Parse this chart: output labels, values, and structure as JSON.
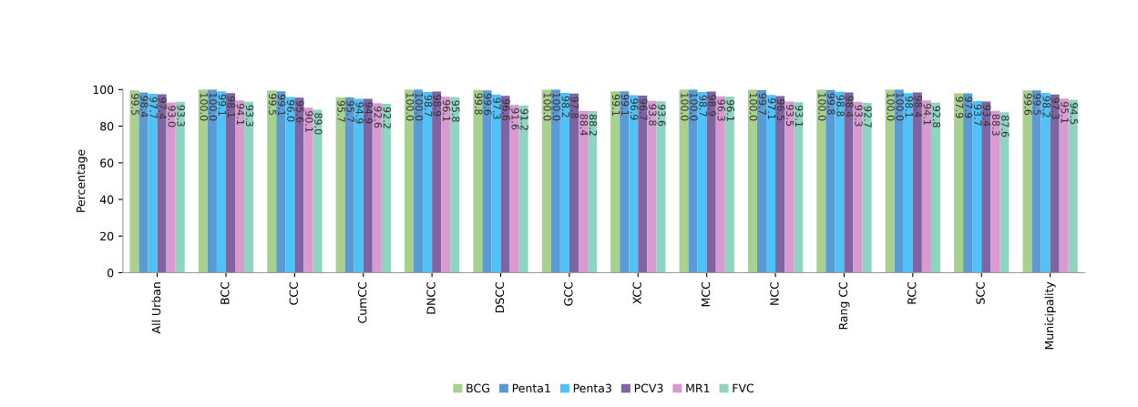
{
  "chart_data": {
    "type": "bar",
    "ylabel": "Percentage",
    "ylim": [
      0,
      100
    ],
    "yticks": [
      0,
      20,
      40,
      60,
      80,
      100
    ],
    "grid": false,
    "legend": "bottom",
    "categories": [
      "All Urban",
      "BCC",
      "CCC",
      "CumCC",
      "DNCC",
      "DSCC",
      "GCC",
      "XCC",
      "MCC",
      "NCC",
      "Rang CC",
      "RCC",
      "SCC",
      "Municipality"
    ],
    "series": [
      {
        "name": "BCG",
        "color": "#a9d18e",
        "values": [
          99.5,
          100,
          99.5,
          95.7,
          100,
          99.8,
          100,
          99.1,
          100,
          100,
          100,
          100,
          97.9,
          99.6
        ],
        "value_labels": [
          "99.5",
          "100.0",
          "99.5",
          "95.7",
          "100.0",
          "99.8",
          "100.0",
          "99.1",
          "100.0",
          "100.0",
          "100.0",
          "100.0",
          "97.9",
          "99.6"
        ]
      },
      {
        "name": "Penta1",
        "color": "#5b9bd5",
        "values": [
          98.4,
          100,
          99.1,
          95.7,
          100,
          99.6,
          100,
          99.1,
          100,
          99.7,
          99.8,
          100,
          97.9,
          99.5
        ],
        "value_labels": [
          "98.4",
          "100.0",
          "99.1",
          "95.7",
          "100.0",
          "99.6",
          "100.0",
          "99.1",
          "100.0",
          "99.7",
          "99.8",
          "100.0",
          "97.9",
          "99.5"
        ]
      },
      {
        "name": "Penta3",
        "color": "#4fc3f7",
        "values": [
          97.7,
          99.1,
          96,
          94.9,
          98.7,
          97.3,
          98.2,
          96.9,
          98.7,
          97.1,
          98.8,
          98.1,
          93.7,
          98.2
        ],
        "value_labels": [
          "97.7",
          "99.1",
          "96.0",
          "94.9",
          "98.7",
          "97.3",
          "98.2",
          "96.9",
          "98.7",
          "97.1",
          "98.8",
          "98.1",
          "93.7",
          "98.2"
        ]
      },
      {
        "name": "PCV3",
        "color": "#8064a2",
        "values": [
          97.4,
          98.1,
          95.6,
          94.9,
          98.9,
          96.6,
          97.8,
          96.7,
          98.9,
          96.5,
          98.4,
          98.4,
          93.4,
          97.3
        ],
        "value_labels": [
          "97.4",
          "98.1",
          "95.6",
          "94.9",
          "98.9",
          "96.6",
          "97.8",
          "96.7",
          "98.9",
          "96.5",
          "98.4",
          "98.4",
          "93.4",
          "97.3"
        ]
      },
      {
        "name": "MR1",
        "color": "#d99ad0",
        "values": [
          93,
          94.1,
          90.1,
          92.6,
          96.1,
          91.6,
          88.4,
          93.8,
          96.3,
          93.5,
          93.3,
          94.1,
          88.3,
          95.1
        ],
        "value_labels": [
          "93.0",
          "94.1",
          "90.1",
          "92.6",
          "96.1",
          "91.6",
          "88.4",
          "93.8",
          "96.3",
          "93.5",
          "93.3",
          "94.1",
          "88.3",
          "95.1"
        ]
      },
      {
        "name": "FVC",
        "color": "#8fd3c1",
        "values": [
          93.3,
          93.3,
          89,
          92.2,
          95.8,
          91.2,
          88.2,
          93.6,
          96.1,
          93.1,
          92.7,
          92.8,
          87.6,
          94.5
        ],
        "value_labels": [
          "93.3",
          "93.3",
          "89.0",
          "92.2",
          "95.8",
          "91.2",
          "88.2",
          "93.6",
          "96.1",
          "93.1",
          "92.7",
          "92.8",
          "87.6",
          "94.5"
        ]
      }
    ]
  }
}
